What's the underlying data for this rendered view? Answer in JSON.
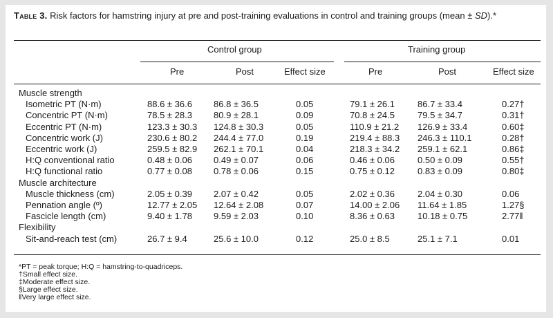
{
  "caption": {
    "label": "Table 3.",
    "text_before_italic": " Risk factors for hamstring injury at pre and post-training evaluations in control and training groups (mean ± ",
    "italic": "SD",
    "text_after_italic": ").*"
  },
  "header": {
    "groups": [
      "Control group",
      "Training group"
    ],
    "columns": [
      "Pre",
      "Post",
      "Effect size",
      "Pre",
      "Post",
      "Effect size"
    ]
  },
  "sections": [
    {
      "title": "Muscle strength",
      "rows": [
        {
          "label": "Isometric PT (N·m)",
          "cells": [
            "88.6 ± 36.6",
            "86.8 ± 36.5",
            "0.05",
            "79.1 ± 26.1",
            "86.7 ± 33.4",
            "0.27†"
          ]
        },
        {
          "label": "Concentric PT (N·m)",
          "cells": [
            "78.5 ± 28.3",
            "80.9 ± 28.1",
            "0.09",
            "70.8 ± 24.5",
            "79.5 ± 34.7",
            "0.31†"
          ]
        },
        {
          "label": "Eccentric PT (N·m)",
          "cells": [
            "123.3 ± 30.3",
            "124.8 ± 30.3",
            "0.05",
            "110.9 ± 21.2",
            "126.9 ± 33.4",
            "0.60‡"
          ]
        },
        {
          "label": "Concentric work (J)",
          "cells": [
            "230.6 ± 80.2",
            "244.4 ± 77.0",
            "0.19",
            "219.4 ± 88.3",
            "246.3 ± 110.1",
            "0.28†"
          ]
        },
        {
          "label": "Eccentric work (J)",
          "cells": [
            "259.5 ± 82.9",
            "262.1 ± 70.1",
            "0.04",
            "218.3 ± 34.2",
            "259.1 ± 62.1",
            "0.86‡"
          ]
        },
        {
          "label": "H:Q conventional ratio",
          "cells": [
            "0.48 ± 0.06",
            "0.49 ± 0.07",
            "0.06",
            "0.46 ± 0.06",
            "0.50 ± 0.09",
            "0.55†"
          ]
        },
        {
          "label": "H:Q functional ratio",
          "cells": [
            "0.77 ± 0.08",
            "0.78 ± 0.06",
            "0.15",
            "0.75 ± 0.12",
            "0.83 ± 0.09",
            "0.80‡"
          ]
        }
      ]
    },
    {
      "title": "Muscle architecture",
      "rows": [
        {
          "label": "Muscle thickness (cm)",
          "cells": [
            "2.05 ± 0.39",
            "2.07 ± 0.42",
            "0.05",
            "2.02 ± 0.36",
            "2.04 ± 0.30",
            "0.06"
          ]
        },
        {
          "label": "Pennation angle (º)",
          "cells": [
            "12.77 ± 2.05",
            "12.64 ± 2.08",
            "0.07",
            "14.00 ± 2.06",
            "11.64 ± 1.85",
            "1.27§"
          ]
        },
        {
          "label": "Fascicle length (cm)",
          "cells": [
            "9.40 ± 1.78",
            "9.59 ± 2.03",
            "0.10",
            "8.36 ± 0.63",
            "10.18 ± 0.75",
            "2.77‖"
          ]
        }
      ]
    },
    {
      "title": "Flexibility",
      "rows": [
        {
          "label": "Sit-and-reach test (cm)",
          "cells": [
            "26.7 ± 9.4",
            "25.6 ± 10.0",
            "0.12",
            "25.0 ± 8.5",
            "25.1 ± 7.1",
            "0.01"
          ]
        }
      ]
    }
  ],
  "notes": [
    "*PT = peak torque; H:Q = hamstring-to-quadriceps.",
    "†Small effect size.",
    "‡Moderate effect size.",
    "§Large effect size.",
    "‖Very large effect size."
  ]
}
